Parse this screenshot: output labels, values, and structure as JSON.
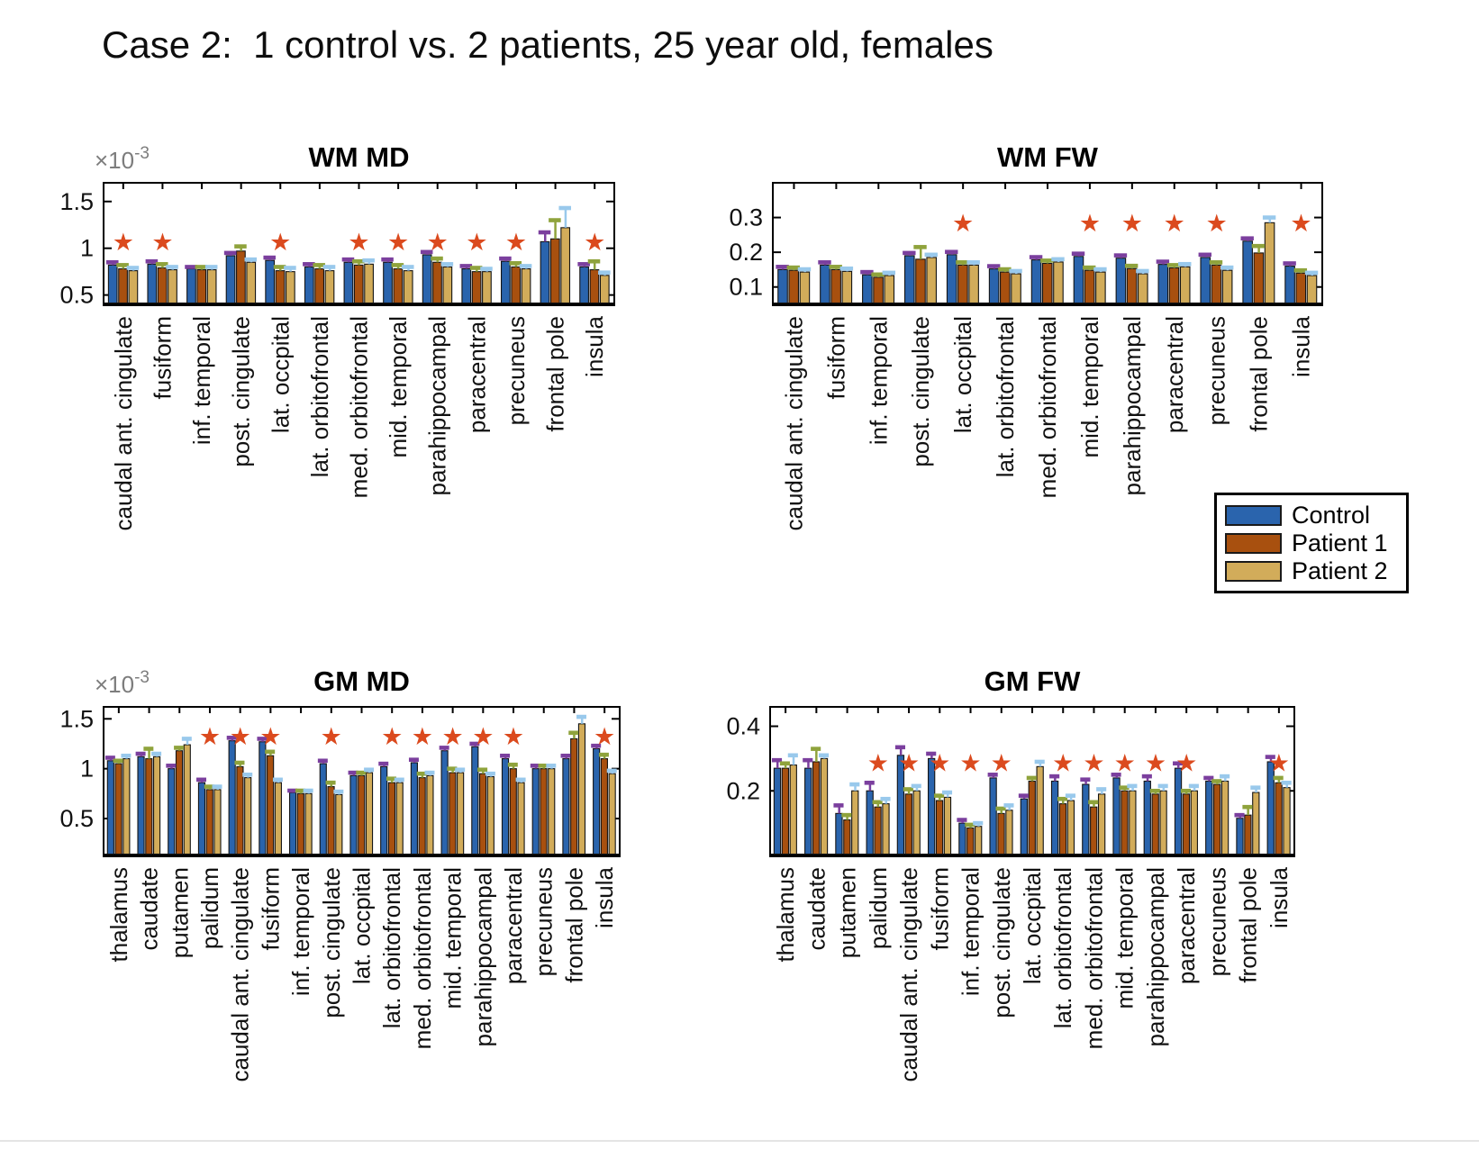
{
  "page": {
    "title": "Case 2:  1 control vs. 2 patients, 25 year old, females"
  },
  "legend": {
    "items": [
      {
        "label": "Control",
        "color": "#2A64AD"
      },
      {
        "label": "Patient 1",
        "color": "#A8500F"
      },
      {
        "label": "Patient 2",
        "color": "#D2AC5A"
      }
    ]
  },
  "colors": {
    "control_bar": "#2A64AD",
    "patient1_bar": "#A8500F",
    "patient2_bar": "#D2AC5A",
    "control_errorcap": "#7B3F9E",
    "patient1_errorcap": "#8FA33C",
    "patient2_errorcap": "#99C9EC",
    "significance_star": "#DB4A1E",
    "axis": "#000000",
    "scale_label_gray": "#7D7D7D"
  },
  "chart_data": [
    {
      "id": "wm-md",
      "type": "bar",
      "title": "WM MD",
      "scale_base": "×10",
      "scale_exp": "-3",
      "ylim": [
        0.4,
        1.7
      ],
      "yticks": [
        0.5,
        1,
        1.5
      ],
      "grid": false,
      "star_y": 0.98,
      "star_color": "#DB4A1E",
      "categories": [
        "caudal ant. cingulate",
        "fusiform",
        "inf. temporal",
        "post. cingulate",
        "lat. occpital",
        "lat. orbitofrontal",
        "med. orbitofrontal",
        "mid. temporal",
        "parahippocampal",
        "paracentral",
        "precuneus",
        "frontal pole",
        "insula"
      ],
      "stars": [
        1,
        1,
        0,
        0,
        1,
        0,
        1,
        1,
        1,
        1,
        1,
        0,
        1
      ],
      "series": [
        {
          "name": "Control",
          "color": "#2A64AD",
          "cap_color": "#7B3F9E",
          "values": [
            0.82,
            0.83,
            0.78,
            0.92,
            0.87,
            0.8,
            0.85,
            0.85,
            0.93,
            0.78,
            0.86,
            1.07,
            0.8
          ],
          "caps": [
            0.85,
            0.86,
            0.8,
            0.95,
            0.9,
            0.83,
            0.88,
            0.88,
            0.96,
            0.81,
            0.89,
            1.17,
            0.83
          ]
        },
        {
          "name": "Patient 1",
          "color": "#A8500F",
          "cap_color": "#8FA33C",
          "values": [
            0.78,
            0.79,
            0.77,
            0.97,
            0.76,
            0.78,
            0.82,
            0.78,
            0.85,
            0.75,
            0.8,
            1.1,
            0.77
          ],
          "caps": [
            0.82,
            0.83,
            0.8,
            1.02,
            0.8,
            0.82,
            0.86,
            0.82,
            0.89,
            0.79,
            0.84,
            1.3,
            0.86
          ]
        },
        {
          "name": "Patient 2",
          "color": "#D2AC5A",
          "cap_color": "#99C9EC",
          "values": [
            0.76,
            0.77,
            0.77,
            0.85,
            0.75,
            0.76,
            0.83,
            0.76,
            0.8,
            0.75,
            0.78,
            1.22,
            0.71
          ],
          "caps": [
            0.79,
            0.8,
            0.8,
            0.88,
            0.79,
            0.8,
            0.87,
            0.8,
            0.83,
            0.78,
            0.81,
            1.43,
            0.74
          ]
        }
      ]
    },
    {
      "id": "wm-fw",
      "type": "bar",
      "title": "WM FW",
      "scale_base": "",
      "scale_exp": "",
      "ylim": [
        0.05,
        0.4
      ],
      "yticks": [
        0.1,
        0.2,
        0.3
      ],
      "grid": false,
      "star_y": 0.26,
      "star_color": "#DB4A1E",
      "categories": [
        "caudal ant. cingulate",
        "fusiform",
        "inf. temporal",
        "post. cingulate",
        "lat. occpital",
        "lat. orbitofrontal",
        "med. orbitofrontal",
        "mid. temporal",
        "parahippocampal",
        "paracentral",
        "precuneus",
        "frontal pole",
        "insula"
      ],
      "stars": [
        0,
        0,
        0,
        0,
        1,
        0,
        0,
        1,
        1,
        1,
        1,
        0,
        1
      ],
      "series": [
        {
          "name": "Control",
          "color": "#2A64AD",
          "cap_color": "#7B3F9E",
          "values": [
            0.15,
            0.163,
            0.135,
            0.19,
            0.193,
            0.152,
            0.178,
            0.188,
            0.183,
            0.165,
            0.185,
            0.232,
            0.16
          ],
          "caps": [
            0.158,
            0.171,
            0.143,
            0.198,
            0.201,
            0.16,
            0.186,
            0.196,
            0.191,
            0.173,
            0.193,
            0.24,
            0.168
          ]
        },
        {
          "name": "Patient 1",
          "color": "#A8500F",
          "cap_color": "#8FA33C",
          "values": [
            0.148,
            0.15,
            0.128,
            0.18,
            0.163,
            0.143,
            0.168,
            0.148,
            0.153,
            0.155,
            0.163,
            0.198,
            0.14
          ],
          "caps": [
            0.156,
            0.158,
            0.136,
            0.215,
            0.171,
            0.151,
            0.176,
            0.156,
            0.161,
            0.163,
            0.171,
            0.218,
            0.148
          ]
        },
        {
          "name": "Patient 2",
          "color": "#D2AC5A",
          "cap_color": "#99C9EC",
          "values": [
            0.143,
            0.145,
            0.133,
            0.185,
            0.163,
            0.138,
            0.172,
            0.143,
            0.138,
            0.158,
            0.148,
            0.285,
            0.133
          ],
          "caps": [
            0.151,
            0.153,
            0.141,
            0.193,
            0.171,
            0.146,
            0.18,
            0.151,
            0.146,
            0.166,
            0.156,
            0.3,
            0.141
          ]
        }
      ]
    },
    {
      "id": "gm-md",
      "type": "bar",
      "title": "GM MD",
      "scale_base": "×10",
      "scale_exp": "-3",
      "ylim": [
        0.13,
        1.62
      ],
      "yticks": [
        0.5,
        1,
        1.5
      ],
      "grid": false,
      "star_y": 1.24,
      "star_color": "#DB4A1E",
      "categories": [
        "thalamus",
        "caudate",
        "putamen",
        "palidum",
        "caudal ant. cingulate",
        "fusiform",
        "inf. temporal",
        "post. cingulate",
        "lat. occpital",
        "lat. orbitofrontal",
        "med. orbitofrontal",
        "mid. temporal",
        "parahippocampal",
        "paracentral",
        "precuneus",
        "frontal pole",
        "insula"
      ],
      "stars": [
        0,
        0,
        0,
        1,
        1,
        1,
        0,
        1,
        0,
        1,
        1,
        1,
        1,
        1,
        0,
        0,
        1
      ],
      "series": [
        {
          "name": "Control",
          "color": "#2A64AD",
          "cap_color": "#7B3F9E",
          "values": [
            1.08,
            1.12,
            1.0,
            0.86,
            1.28,
            1.27,
            0.76,
            1.05,
            0.93,
            1.02,
            1.06,
            1.18,
            1.22,
            1.1,
            1.0,
            1.1,
            1.2
          ],
          "caps": [
            1.11,
            1.15,
            1.03,
            0.89,
            1.31,
            1.3,
            0.78,
            1.08,
            0.96,
            1.05,
            1.09,
            1.21,
            1.25,
            1.13,
            1.03,
            1.13,
            1.23
          ]
        },
        {
          "name": "Patient 1",
          "color": "#A8500F",
          "cap_color": "#8FA33C",
          "values": [
            1.05,
            1.1,
            1.18,
            0.79,
            1.02,
            1.13,
            0.75,
            0.82,
            0.93,
            0.86,
            0.91,
            0.96,
            0.95,
            1.0,
            1.0,
            1.3,
            1.1
          ],
          "caps": [
            1.08,
            1.2,
            1.21,
            0.82,
            1.06,
            1.17,
            0.78,
            0.86,
            0.96,
            0.9,
            0.95,
            1.0,
            0.99,
            1.04,
            1.03,
            1.36,
            1.14
          ]
        },
        {
          "name": "Patient 2",
          "color": "#D2AC5A",
          "cap_color": "#99C9EC",
          "values": [
            1.1,
            1.12,
            1.24,
            0.79,
            0.91,
            0.86,
            0.75,
            0.74,
            0.96,
            0.86,
            0.93,
            0.96,
            0.92,
            0.86,
            1.0,
            1.45,
            0.95
          ],
          "caps": [
            1.13,
            1.15,
            1.3,
            0.82,
            0.94,
            0.89,
            0.78,
            0.77,
            0.99,
            0.89,
            0.96,
            0.99,
            0.95,
            0.89,
            1.03,
            1.52,
            0.98
          ]
        }
      ]
    },
    {
      "id": "gm-fw",
      "type": "bar",
      "title": "GM FW",
      "scale_base": "",
      "scale_exp": "",
      "ylim": [
        0.0,
        0.46
      ],
      "yticks": [
        0.2,
        0.4
      ],
      "grid": false,
      "star_y": 0.26,
      "star_color": "#DB4A1E",
      "categories": [
        "thalamus",
        "caudate",
        "putamen",
        "palidum",
        "caudal ant. cingulate",
        "fusiform",
        "inf. temporal",
        "post. cingulate",
        "lat. occpital",
        "lat. orbitofrontal",
        "med. orbitofrontal",
        "mid. temporal",
        "parahippocampal",
        "paracentral",
        "precuneus",
        "frontal pole",
        "insula"
      ],
      "stars": [
        0,
        0,
        0,
        1,
        1,
        1,
        1,
        1,
        0,
        1,
        1,
        1,
        1,
        1,
        0,
        0,
        1
      ],
      "series": [
        {
          "name": "Control",
          "color": "#2A64AD",
          "cap_color": "#7B3F9E",
          "values": [
            0.27,
            0.27,
            0.13,
            0.2,
            0.31,
            0.3,
            0.1,
            0.24,
            0.175,
            0.23,
            0.22,
            0.24,
            0.23,
            0.27,
            0.23,
            0.115,
            0.29
          ],
          "caps": [
            0.295,
            0.295,
            0.155,
            0.225,
            0.335,
            0.315,
            0.11,
            0.25,
            0.185,
            0.245,
            0.235,
            0.25,
            0.245,
            0.285,
            0.24,
            0.125,
            0.305
          ]
        },
        {
          "name": "Patient 1",
          "color": "#A8500F",
          "cap_color": "#8FA33C",
          "values": [
            0.27,
            0.29,
            0.11,
            0.15,
            0.19,
            0.17,
            0.085,
            0.13,
            0.23,
            0.16,
            0.15,
            0.2,
            0.19,
            0.19,
            0.22,
            0.125,
            0.225
          ],
          "caps": [
            0.285,
            0.33,
            0.125,
            0.165,
            0.205,
            0.185,
            0.095,
            0.145,
            0.24,
            0.175,
            0.165,
            0.21,
            0.2,
            0.2,
            0.23,
            0.15,
            0.24
          ]
        },
        {
          "name": "Patient 2",
          "color": "#D2AC5A",
          "cap_color": "#99C9EC",
          "values": [
            0.28,
            0.3,
            0.2,
            0.16,
            0.2,
            0.18,
            0.09,
            0.14,
            0.275,
            0.17,
            0.19,
            0.2,
            0.2,
            0.2,
            0.23,
            0.195,
            0.21
          ],
          "caps": [
            0.31,
            0.31,
            0.22,
            0.175,
            0.215,
            0.195,
            0.1,
            0.155,
            0.29,
            0.185,
            0.205,
            0.215,
            0.215,
            0.215,
            0.245,
            0.21,
            0.225
          ]
        }
      ]
    }
  ]
}
